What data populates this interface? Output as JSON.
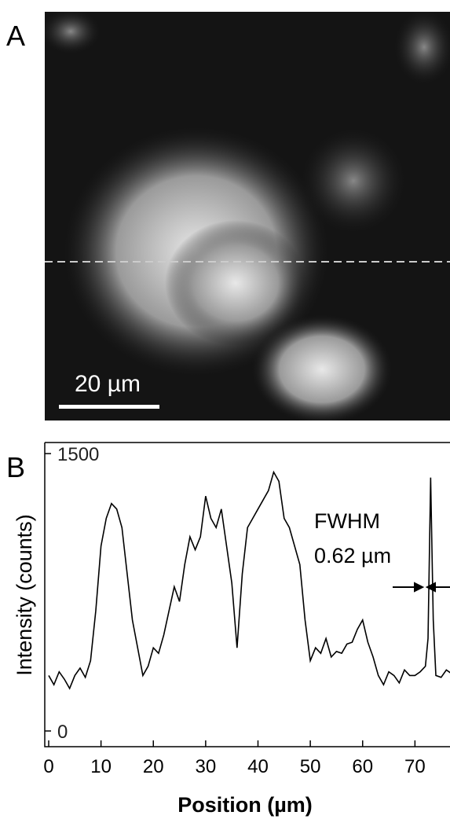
{
  "panel_a": {
    "label": "A",
    "scale_bar": "20 µm"
  },
  "chart_data": {
    "type": "line",
    "panel_label": "B",
    "x_label": "Position (µm)",
    "y_label": "Intensity (counts)",
    "annotation": [
      "FWHM",
      "0.62 µm"
    ],
    "xlim": [
      -0.75,
      76.7
    ],
    "ylim": [
      -85,
      1560
    ],
    "xticks": [
      0,
      10,
      20,
      30,
      40,
      50,
      60,
      70
    ],
    "yticks": [
      0,
      1500
    ],
    "series": [
      {
        "color": "#000000",
        "x": [
          0,
          1,
          2,
          3,
          4,
          5,
          6,
          7,
          8,
          9,
          10,
          11,
          12,
          13,
          14,
          15,
          16,
          17,
          18,
          19,
          20,
          21,
          22,
          23,
          24,
          25,
          26,
          27,
          28,
          29,
          30,
          31,
          32,
          33,
          34,
          35,
          36,
          37,
          38,
          39,
          40,
          41,
          42,
          43,
          44,
          45,
          46,
          47,
          48,
          49,
          50,
          51,
          52,
          53,
          54,
          55,
          56,
          57,
          58,
          59,
          60,
          61,
          62,
          63,
          64,
          65,
          66,
          67,
          68,
          69,
          70,
          71,
          72,
          72.5,
          73,
          73.5,
          74,
          75,
          76,
          77
        ],
        "values": [
          300,
          250,
          320,
          280,
          230,
          300,
          340,
          290,
          380,
          650,
          1000,
          1150,
          1230,
          1200,
          1100,
          850,
          600,
          450,
          300,
          350,
          450,
          420,
          520,
          650,
          780,
          700,
          900,
          1050,
          980,
          1050,
          1270,
          1150,
          1100,
          1200,
          1000,
          800,
          450,
          850,
          1100,
          1150,
          1200,
          1250,
          1300,
          1400,
          1350,
          1150,
          1100,
          1000,
          900,
          600,
          380,
          450,
          420,
          500,
          400,
          430,
          420,
          470,
          480,
          550,
          600,
          480,
          400,
          300,
          250,
          320,
          300,
          260,
          330,
          300,
          300,
          320,
          350,
          500,
          1370,
          600,
          300,
          290,
          330,
          310
        ]
      }
    ]
  }
}
